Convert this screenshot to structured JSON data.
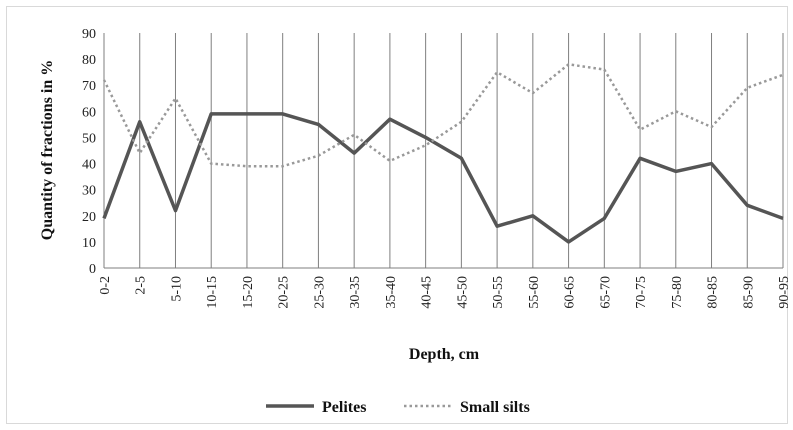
{
  "chart_data": {
    "type": "line",
    "categories": [
      "0-2",
      "2-5",
      "5-10",
      "10-15",
      "15-20",
      "20-25",
      "25-30",
      "30-35",
      "35-40",
      "40-45",
      "45-50",
      "50-55",
      "55-60",
      "60-65",
      "65-70",
      "70-75",
      "75-80",
      "80-85",
      "85-90",
      "90-95"
    ],
    "series": [
      {
        "name": "Pelites",
        "style": "solid",
        "color": "#555555",
        "values": [
          19,
          56,
          22,
          59,
          59,
          59,
          55,
          44,
          57,
          50,
          42,
          16,
          20,
          10,
          19,
          42,
          37,
          40,
          24,
          19
        ]
      },
      {
        "name": "Small silts",
        "style": "dotted",
        "color": "#999999",
        "values": [
          72,
          44,
          65,
          40,
          39,
          39,
          43,
          51,
          41,
          47,
          56,
          75,
          67,
          78,
          76,
          53,
          60,
          54,
          69,
          74
        ]
      }
    ],
    "xlabel": "Depth, cm",
    "ylabel": "Quantity of fractions in %",
    "ylim": [
      0,
      90
    ],
    "yticks": [
      "0",
      "10",
      "20",
      "30",
      "40",
      "50",
      "60",
      "70",
      "80",
      "90"
    ],
    "grid": "vertical",
    "legend_position": "bottom"
  }
}
